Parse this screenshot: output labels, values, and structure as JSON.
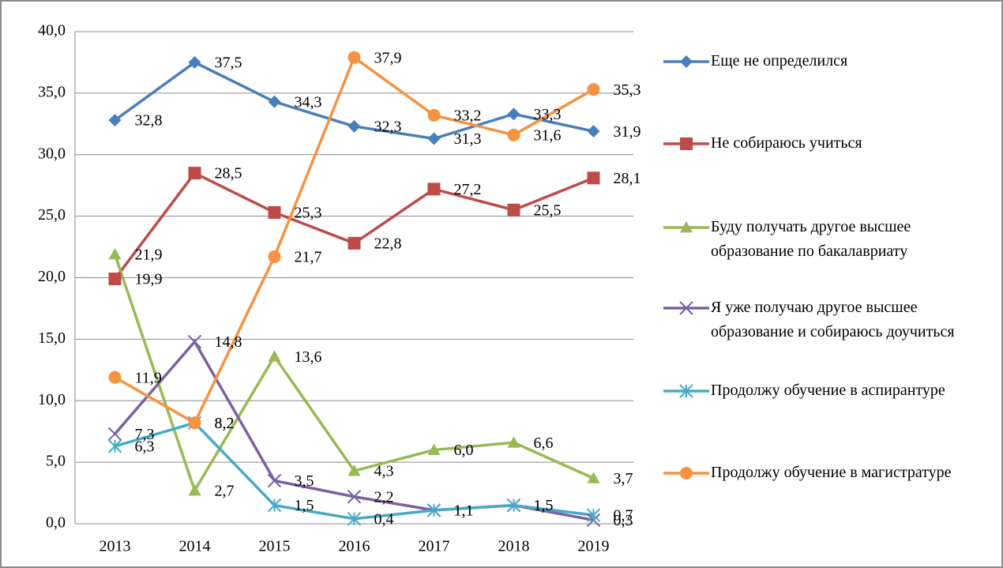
{
  "chart_data": {
    "type": "line",
    "categories": [
      "2013",
      "2014",
      "2015",
      "2016",
      "2017",
      "2018",
      "2019"
    ],
    "ylim": [
      0,
      40
    ],
    "yticks": [
      {
        "value": 0,
        "label": "0,0"
      },
      {
        "value": 5,
        "label": "5,0"
      },
      {
        "value": 10,
        "label": "10,0"
      },
      {
        "value": 15,
        "label": "15,0"
      },
      {
        "value": 20,
        "label": "20,0"
      },
      {
        "value": 25,
        "label": "25,0"
      },
      {
        "value": 30,
        "label": "30,0"
      },
      {
        "value": 35,
        "label": "35,0"
      },
      {
        "value": 40,
        "label": "40,0"
      }
    ],
    "grid": true,
    "legend": "right",
    "series": [
      {
        "name": "Еще не определился",
        "color": "#4a7ebb",
        "marker": "diamond",
        "values": [
          32.8,
          37.5,
          34.3,
          32.3,
          31.3,
          33.3,
          31.9
        ],
        "value_labels": [
          "32,8",
          "37,5",
          "34,3",
          "32,3",
          "31,3",
          "33,3",
          "31,9"
        ]
      },
      {
        "name": "Не собираюсь учиться",
        "color": "#be4b48",
        "marker": "square",
        "values": [
          19.9,
          28.5,
          25.3,
          22.8,
          27.2,
          25.5,
          28.1
        ],
        "value_labels": [
          "19,9",
          "28,5",
          "25,3",
          "22,8",
          "27,2",
          "25,5",
          "28,1"
        ]
      },
      {
        "name": "Буду получать другое высшее образование по бакалавриату",
        "color": "#98b954",
        "marker": "triangle",
        "values": [
          21.9,
          2.7,
          13.6,
          4.3,
          6.0,
          6.6,
          3.7
        ],
        "value_labels": [
          "21,9",
          "2,7",
          "13,6",
          "4,3",
          "6,0",
          "6,6",
          "3,7"
        ]
      },
      {
        "name": "Я уже получаю другое высшее образование и собираюсь доучиться",
        "color": "#7d60a0",
        "marker": "x",
        "values": [
          7.3,
          14.8,
          3.5,
          2.2,
          1.1,
          1.5,
          0.3
        ],
        "value_labels": [
          "7,3",
          "14,8",
          "3,5",
          "2,2",
          "1,1",
          "1,5",
          "0,3"
        ]
      },
      {
        "name": "Продолжу обучение в аспирантуре",
        "color": "#46aac5",
        "marker": "star",
        "values": [
          6.3,
          8.2,
          1.5,
          0.4,
          1.1,
          1.5,
          0.7
        ],
        "value_labels": [
          "6,3",
          "8,2",
          "1,5",
          "0,4",
          "1,1",
          "1,5",
          "0,7"
        ]
      },
      {
        "name": "Продолжу обучение в магистратуре",
        "color": "#f69240",
        "marker": "circle",
        "values": [
          11.9,
          8.2,
          21.7,
          37.9,
          33.2,
          31.6,
          35.3
        ],
        "value_labels": [
          "11,9",
          "8,2",
          "21,7",
          "37,9",
          "33,2",
          "31,6",
          "35,3"
        ]
      }
    ]
  }
}
